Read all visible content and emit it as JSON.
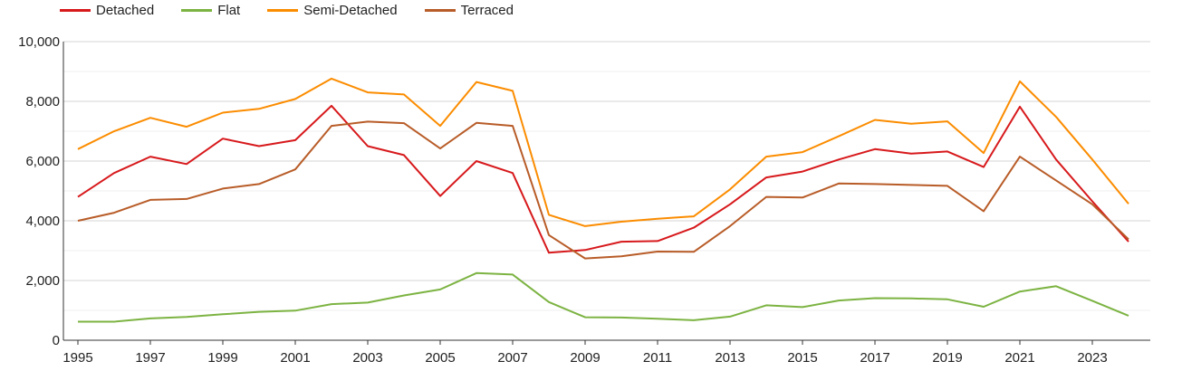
{
  "chart_data": {
    "type": "line",
    "title": "",
    "xlabel": "",
    "ylabel": "",
    "ylim": [
      0,
      10000
    ],
    "y_ticks": [
      0,
      2000,
      4000,
      6000,
      8000,
      10000
    ],
    "y_tick_labels": [
      "0",
      "2,000",
      "4,000",
      "6,000",
      "8,000",
      "10,000"
    ],
    "x_ticks": [
      1995,
      1997,
      1999,
      2001,
      2003,
      2005,
      2007,
      2009,
      2011,
      2013,
      2015,
      2017,
      2019,
      2021,
      2023
    ],
    "x_tick_labels": [
      "1995",
      "1997",
      "1999",
      "2001",
      "2003",
      "2005",
      "2007",
      "2009",
      "2011",
      "2013",
      "2015",
      "2017",
      "2019",
      "2021",
      "2023"
    ],
    "grid": true,
    "legend_position": "top-left",
    "x": [
      1995,
      1996,
      1997,
      1998,
      1999,
      2000,
      2001,
      2002,
      2003,
      2004,
      2005,
      2006,
      2007,
      2008,
      2009,
      2010,
      2011,
      2012,
      2013,
      2014,
      2015,
      2016,
      2017,
      2018,
      2019,
      2020,
      2021,
      2022,
      2023,
      2024
    ],
    "series": [
      {
        "name": "Detached",
        "color": "#d7191c",
        "values": [
          4800,
          5600,
          6150,
          5900,
          6750,
          6500,
          6700,
          7850,
          6500,
          6200,
          4830,
          6000,
          5600,
          2930,
          3020,
          3300,
          3320,
          3770,
          4550,
          5450,
          5650,
          6050,
          6400,
          6250,
          6320,
          5800,
          7820,
          6050,
          4650,
          3300
        ]
      },
      {
        "name": "Flat",
        "color": "#7cb342",
        "values": [
          620,
          620,
          730,
          780,
          870,
          950,
          990,
          1210,
          1260,
          1500,
          1700,
          2250,
          2200,
          1280,
          770,
          760,
          720,
          670,
          790,
          1170,
          1110,
          1330,
          1410,
          1400,
          1370,
          1120,
          1630,
          1810,
          1320,
          820
        ]
      },
      {
        "name": "Semi-Detached",
        "color": "#fb8c00",
        "values": [
          6400,
          7000,
          7450,
          7150,
          7620,
          7750,
          8080,
          8760,
          8300,
          8230,
          7180,
          8650,
          8350,
          4200,
          3820,
          3970,
          4070,
          4150,
          5050,
          6150,
          6300,
          6830,
          7380,
          7250,
          7330,
          6270,
          8670,
          7480,
          6050,
          4570
        ]
      },
      {
        "name": "Terraced",
        "color": "#b85c28",
        "values": [
          4000,
          4270,
          4700,
          4730,
          5080,
          5230,
          5720,
          7180,
          7320,
          7270,
          6420,
          7280,
          7180,
          3520,
          2740,
          2810,
          2970,
          2960,
          3820,
          4800,
          4780,
          5250,
          5230,
          5200,
          5170,
          4320,
          6150,
          5350,
          4550,
          3380
        ]
      }
    ]
  }
}
